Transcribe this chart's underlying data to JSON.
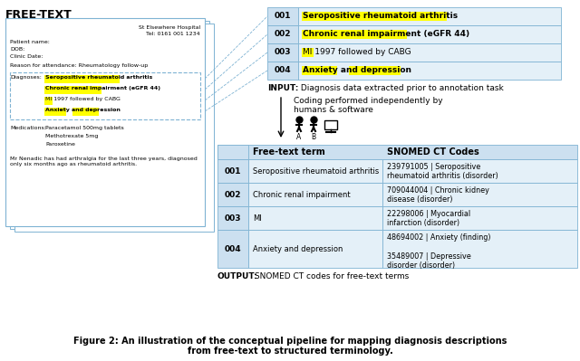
{
  "title_line1": "Figure 2: An illustration of the conceptual pipeline for mapping diagnosis descriptions",
  "title_line2": "from free-text to structured terminology.",
  "freetext_header": "FREE-TEXT",
  "hospital_name": "St Elsewhere Hospital",
  "hospital_tel": "Tel: 0161 001 1234",
  "patient_name_label": "Patient name:",
  "dob_label": "DOB:",
  "clinic_date_label": "Clinic Date:",
  "reason_label": "Reason for attendance: Rheumatology follow-up",
  "diagnoses_label": "Diagnoses:",
  "diagnoses_lines": [
    "Seropositive rheumatoid arthritis",
    "Chronic renal impairment (eGFR 44)",
    "MI 1997 followed by CABG",
    "Anxiety and depression"
  ],
  "meds_label": "Medications:",
  "meds_lines": [
    "Paracetamol 500mg tablets",
    "Methotrexate 5mg",
    "Paroxetine"
  ],
  "narrative": "Mr Nenadic has had arthralgia for the last three years, diagnosed\nonly six months ago as rheumatoid arthritis.",
  "input_rows": [
    [
      "001",
      "Seropositive rheumatoid arthritis"
    ],
    [
      "002",
      "Chronic renal impairment (eGFR 44)"
    ],
    [
      "003",
      "MI 1997 followed by CABG"
    ],
    [
      "004",
      "Anxiety and depression"
    ]
  ],
  "input_label_bold": "INPUT:",
  "input_label_rest": " Diagnosis data extracted prior to annotation task",
  "coding_text_line1": "Coding performed independently by",
  "coding_text_line2": "humans & software",
  "output_col_headers": [
    "Free-text term",
    "SNOMED CT Codes"
  ],
  "output_rows": [
    [
      "001",
      "Seropositive rheumatoid arthritis",
      "239791005 | Seropositive\nrheumatoid arthritis (disorder)"
    ],
    [
      "002",
      "Chronic renal impairment",
      "709044004 | Chronic kidney\ndisease (disorder)"
    ],
    [
      "003",
      "MI",
      "22298006 | Myocardial\ninfarction (disorder)"
    ],
    [
      "004",
      "Anxiety and depression",
      "48694002 | Anxiety (finding)\n\n35489007 | Depressive\ndisorder (disorder)"
    ]
  ],
  "output_label_bold": "OUTPUT:",
  "output_label_rest": " SNOMED CT codes for free-text terms",
  "light_blue": "#cce0f0",
  "lighter_blue": "#e4f0f8",
  "border_blue": "#7fb3d3",
  "yellow_highlight": "#ffff00",
  "white": "#ffffff",
  "bg_color": "#ffffff"
}
